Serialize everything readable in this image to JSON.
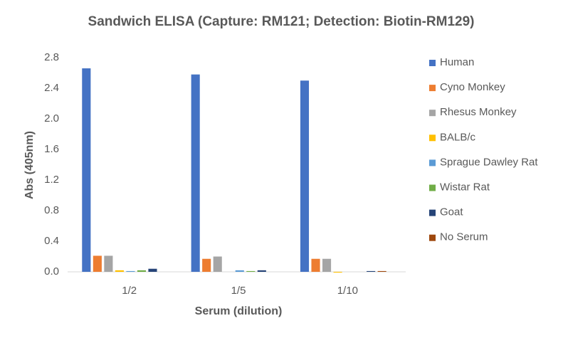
{
  "chart_data": {
    "type": "bar",
    "title": "Sandwich ELISA (Capture: RM121; Detection: Biotin-RM129)",
    "x_label": "Serum (dilution)",
    "y_label": "Abs (405nm)",
    "categories": [
      "1/2",
      "1/5",
      "1/10"
    ],
    "series": [
      {
        "name": "Human",
        "color": "#4472c4",
        "values": [
          2.66,
          2.58,
          2.5
        ]
      },
      {
        "name": "Cyno Monkey",
        "color": "#ed7d31",
        "values": [
          0.21,
          0.17,
          0.17
        ]
      },
      {
        "name": "Rhesus Monkey",
        "color": "#a5a5a5",
        "values": [
          0.21,
          0.2,
          0.17
        ]
      },
      {
        "name": "BALB/c",
        "color": "#ffc000",
        "values": [
          0.02,
          0,
          -0.01
        ]
      },
      {
        "name": "Sprague Dawley Rat",
        "color": "#5b9bd5",
        "values": [
          0.01,
          0.02,
          0
        ]
      },
      {
        "name": "Wistar Rat",
        "color": "#70ad47",
        "values": [
          0.02,
          0.01,
          0
        ]
      },
      {
        "name": "Goat",
        "color": "#264478",
        "values": [
          0.04,
          0.02,
          0.01
        ]
      },
      {
        "name": "No Serum",
        "color": "#9e480e",
        "values": [
          0,
          0,
          0.01
        ]
      }
    ],
    "ylim": [
      0,
      2.8
    ],
    "yticks": [
      {
        "value": 0,
        "label": "0.0"
      },
      0.4,
      0.8,
      1.2,
      1.6,
      {
        "value": 2,
        "label": "2.0"
      },
      2.4,
      2.8
    ],
    "grid": false,
    "legend": "right"
  }
}
